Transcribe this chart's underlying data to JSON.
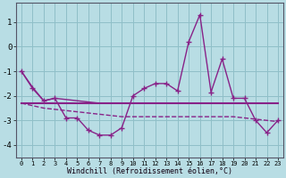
{
  "xlabel": "Windchill (Refroidissement éolien,°C)",
  "background_color": "#b8dde4",
  "grid_color": "#8fbfc8",
  "line_color": "#882288",
  "hours": [
    0,
    1,
    2,
    3,
    4,
    5,
    6,
    7,
    8,
    9,
    10,
    11,
    12,
    13,
    14,
    15,
    16,
    17,
    18,
    19,
    20,
    21,
    22,
    23
  ],
  "windchill_main": [
    -1.0,
    -1.7,
    -2.2,
    -2.1,
    -2.9,
    -2.9,
    -3.4,
    -3.6,
    -3.6,
    -3.3,
    -2.0,
    -1.7,
    -1.5,
    -1.5,
    -1.8,
    0.2,
    1.3,
    -1.85,
    -0.5,
    -2.1,
    -2.1,
    -3.0,
    -3.5,
    -3.0
  ],
  "upper_smooth": [
    -1.0,
    -1.65,
    -2.2,
    -2.1,
    -2.15,
    -2.2,
    -2.25,
    -2.3,
    -2.3,
    -2.3,
    -2.3,
    -2.3,
    -2.3,
    -2.3,
    -2.3,
    -2.3,
    -2.3,
    -2.3,
    -2.3,
    -2.3,
    -2.3,
    -2.3,
    -2.3,
    -2.3
  ],
  "trend_flat": [
    -2.3,
    -2.3,
    -2.3,
    -2.3,
    -2.3,
    -2.3,
    -2.3,
    -2.3,
    -2.3,
    -2.3,
    -2.3,
    -2.3,
    -2.3,
    -2.3,
    -2.3,
    -2.3,
    -2.3,
    -2.3,
    -2.3,
    -2.3,
    -2.3,
    -2.3,
    -2.3,
    -2.3
  ],
  "lower_dashed": [
    -2.3,
    -2.4,
    -2.5,
    -2.55,
    -2.6,
    -2.65,
    -2.7,
    -2.75,
    -2.8,
    -2.85,
    -2.85,
    -2.85,
    -2.85,
    -2.85,
    -2.85,
    -2.85,
    -2.85,
    -2.85,
    -2.85,
    -2.85,
    -2.9,
    -2.95,
    -3.0,
    -3.05
  ],
  "ylim": [
    -4.5,
    1.8
  ],
  "yticks": [
    -4,
    -3,
    -2,
    -1,
    0,
    1
  ],
  "figsize": [
    3.2,
    2.0
  ],
  "dpi": 100
}
